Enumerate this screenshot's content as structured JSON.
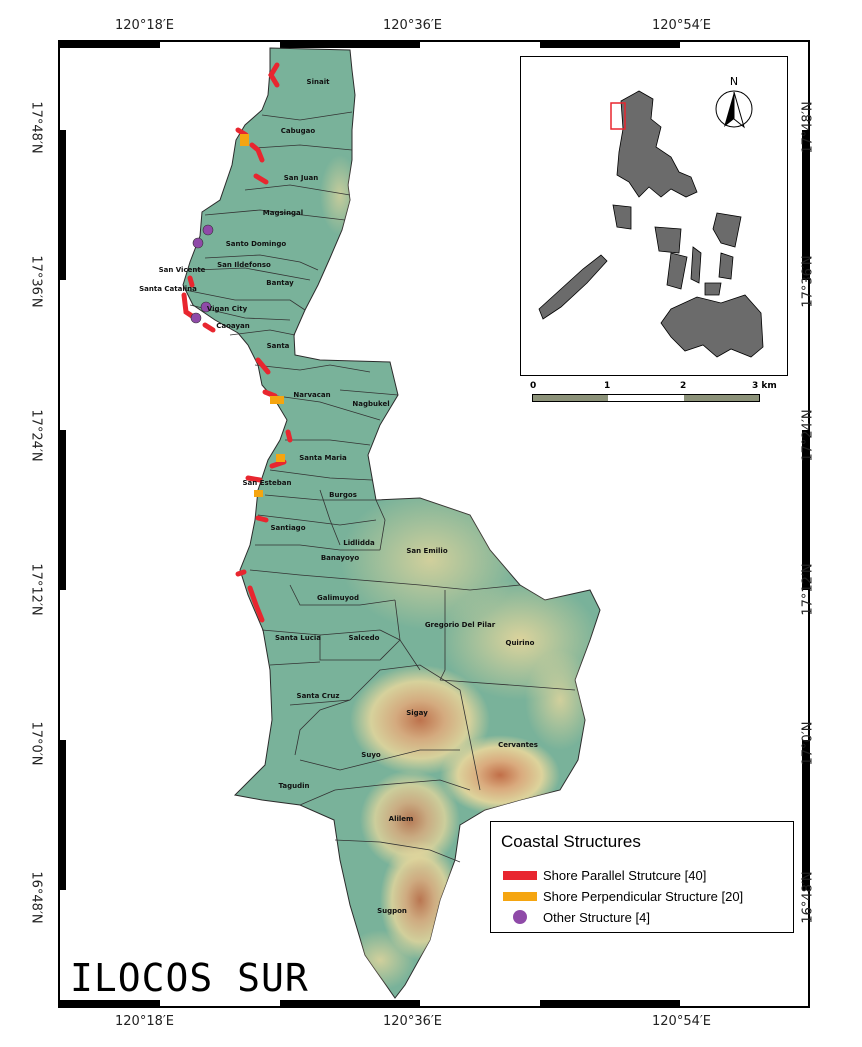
{
  "map": {
    "title": "ILOCOS SUR",
    "coordinate_labels": {
      "top": [
        "120°18′E",
        "120°36′E",
        "120°54′E"
      ],
      "bottom": [
        "120°18′E",
        "120°36′E",
        "120°54′E"
      ],
      "left": [
        "17°48′N",
        "17°36′N",
        "17°24′N",
        "17°12′N",
        "17°0′N",
        "16°48′N"
      ],
      "right": [
        "17°48′N",
        "17°36′N",
        "17°24′N",
        "17°12′N",
        "17°0′N",
        "16°48′N"
      ]
    },
    "municipalities": [
      "Sinait",
      "Cabugao",
      "San Juan",
      "Magsingal",
      "Santo Domingo",
      "San Ildefonso",
      "San Vicente",
      "Bantay",
      "Santa Catalina",
      "Vigan City",
      "Caoayan",
      "Santa",
      "Narvacan",
      "Nagbukel",
      "Santa Maria",
      "San Esteban",
      "Burgos",
      "Santiago",
      "Lidlidda",
      "San Emilio",
      "Banayoyo",
      "Galimuyod",
      "Gregorio Del Pilar",
      "Quirino",
      "Santa Lucia",
      "Salcedo",
      "Santa Cruz",
      "Sigay",
      "Cervantes",
      "Suyo",
      "Tagudin",
      "Alilem",
      "Sugpon"
    ],
    "colors": {
      "lowland": "#79b29a",
      "highland": "#e7d79c",
      "peak": "#d47b52",
      "shore_parallel": "#e8262f",
      "shore_perpendicular": "#f5a510",
      "other_structure": "#8f4aa8",
      "inset_land": "#6b6b6b",
      "study_area_box": "#e8262f"
    }
  },
  "inset": {
    "north_label": "N",
    "scale_labels": [
      "0",
      "1",
      "2",
      "3 km"
    ]
  },
  "legend": {
    "title": "Coastal Structures",
    "items": [
      {
        "label": "Shore Parallel Strutcure [40]",
        "color": "#e8262f",
        "type": "line"
      },
      {
        "label": "Shore Perpendicular Structure [20]",
        "color": "#f5a510",
        "type": "line"
      },
      {
        "label": "Other Structure [4]",
        "color": "#8f4aa8",
        "type": "dot"
      }
    ]
  }
}
